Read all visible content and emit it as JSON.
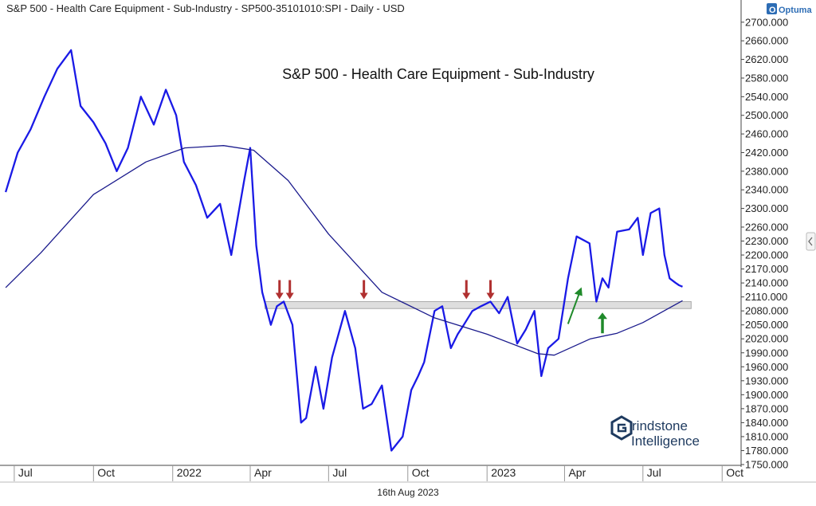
{
  "header": {
    "title": "S&P 500 - Health Care Equipment - Sub-Industry - SP500-35101010:SPI - Daily - USD"
  },
  "brand": {
    "optuma_label": "Optuma",
    "watermark_line1": "rindstone",
    "watermark_line2": "Intelligence"
  },
  "footer": {
    "date_label": "16th Aug 2023"
  },
  "colors": {
    "price": "#1a1ae6",
    "moving_average": "#1a1a8c",
    "resistance_arrow": "#b03030",
    "support_arrow": "#1f8a2a",
    "zone": "#d8d8d8"
  },
  "chart_data": {
    "type": "line",
    "title": "S&P 500 - Health Care Equipment - Sub-Industry",
    "xlabel": "",
    "ylabel": "",
    "ylim": [
      1750,
      2710
    ],
    "x_range": [
      "2021-06-20",
      "2023-10-23"
    ],
    "y_ticks": [
      "2700.000",
      "2660.000",
      "2620.000",
      "2580.000",
      "2540.000",
      "2500.000",
      "2460.000",
      "2420.000",
      "2380.000",
      "2340.000",
      "2300.000",
      "2260.000",
      "2230.000",
      "2200.000",
      "2170.000",
      "2140.000",
      "2110.000",
      "2080.000",
      "2050.000",
      "2020.000",
      "1990.000",
      "1960.000",
      "1930.000",
      "1900.000",
      "1870.000",
      "1840.000",
      "1810.000",
      "1780.000",
      "1750.000"
    ],
    "x_ticks": [
      {
        "label": "Jul",
        "date": "2021-07-01"
      },
      {
        "label": "Oct",
        "date": "2021-10-01"
      },
      {
        "label": "2022",
        "date": "2022-01-01"
      },
      {
        "label": "Apr",
        "date": "2022-04-01"
      },
      {
        "label": "Jul",
        "date": "2022-07-01"
      },
      {
        "label": "Oct",
        "date": "2022-10-01"
      },
      {
        "label": "2023",
        "date": "2023-01-01"
      },
      {
        "label": "Apr",
        "date": "2023-04-01"
      },
      {
        "label": "Jul",
        "date": "2023-07-01"
      },
      {
        "label": "Oct",
        "date": "2023-10-01"
      }
    ],
    "series": [
      {
        "key": "price",
        "x": [
          "2021-06-21",
          "2021-07-05",
          "2021-07-20",
          "2021-08-05",
          "2021-08-20",
          "2021-09-05",
          "2021-09-16",
          "2021-10-01",
          "2021-10-15",
          "2021-10-28",
          "2021-11-10",
          "2021-11-25",
          "2021-12-10",
          "2021-12-24",
          "2022-01-05",
          "2022-01-14",
          "2022-01-28",
          "2022-02-10",
          "2022-02-25",
          "2022-03-10",
          "2022-03-25",
          "2022-04-01",
          "2022-04-08",
          "2022-04-15",
          "2022-04-25",
          "2022-05-02",
          "2022-05-10",
          "2022-05-20",
          "2022-05-30",
          "2022-06-05",
          "2022-06-16",
          "2022-06-25",
          "2022-07-05",
          "2022-07-20",
          "2022-08-01",
          "2022-08-10",
          "2022-08-20",
          "2022-09-01",
          "2022-09-12",
          "2022-09-25",
          "2022-10-05",
          "2022-10-13",
          "2022-10-20",
          "2022-11-01",
          "2022-11-10",
          "2022-11-20",
          "2022-11-28",
          "2022-12-05",
          "2022-12-15",
          "2022-12-25",
          "2023-01-05",
          "2023-01-15",
          "2023-01-25",
          "2023-02-05",
          "2023-02-15",
          "2023-02-25",
          "2023-03-05",
          "2023-03-13",
          "2023-03-25",
          "2023-04-05",
          "2023-04-15",
          "2023-04-30",
          "2023-05-08",
          "2023-05-15",
          "2023-05-22",
          "2023-06-01",
          "2023-06-15",
          "2023-06-25",
          "2023-07-01",
          "2023-07-10",
          "2023-07-20",
          "2023-07-26",
          "2023-08-01",
          "2023-08-08",
          "2023-08-12",
          "2023-08-16"
        ],
        "values": [
          2335,
          2420,
          2470,
          2540,
          2600,
          2640,
          2520,
          2485,
          2440,
          2380,
          2430,
          2540,
          2480,
          2555,
          2500,
          2400,
          2350,
          2280,
          2310,
          2200,
          2360,
          2430,
          2220,
          2120,
          2050,
          2090,
          2100,
          2050,
          1840,
          1850,
          1960,
          1870,
          1980,
          2080,
          2000,
          1870,
          1880,
          1920,
          1780,
          1810,
          1910,
          1940,
          1970,
          2080,
          2090,
          2000,
          2030,
          2050,
          2080,
          2090,
          2100,
          2075,
          2110,
          2010,
          2040,
          2080,
          1940,
          2000,
          2020,
          2150,
          2240,
          2225,
          2100,
          2150,
          2130,
          2250,
          2255,
          2280,
          2200,
          2290,
          2300,
          2200,
          2150,
          2140,
          2135,
          2132
        ]
      },
      {
        "key": "moving_average",
        "x": [
          "2021-06-21",
          "2021-08-01",
          "2021-10-01",
          "2021-12-01",
          "2022-01-15",
          "2022-03-01",
          "2022-04-05",
          "2022-05-15",
          "2022-07-01",
          "2022-09-01",
          "2022-11-01",
          "2023-01-01",
          "2023-03-01",
          "2023-03-20",
          "2023-05-01",
          "2023-06-01",
          "2023-07-01",
          "2023-08-16"
        ],
        "values": [
          2130,
          2205,
          2330,
          2400,
          2430,
          2435,
          2425,
          2360,
          2245,
          2120,
          2065,
          2030,
          1988,
          1985,
          2020,
          2032,
          2055,
          2102
        ]
      }
    ],
    "annotations": [
      {
        "type": "zone",
        "x_start": "2022-04-18",
        "x_end": "2023-08-26",
        "y_low": 2085,
        "y_high": 2100
      },
      {
        "type": "arrow_down",
        "color": "resistance",
        "x": "2022-05-05"
      },
      {
        "type": "arrow_down",
        "color": "resistance",
        "x": "2022-05-17"
      },
      {
        "type": "arrow_down",
        "color": "resistance",
        "x": "2022-08-11"
      },
      {
        "type": "arrow_down",
        "color": "resistance",
        "x": "2022-12-08"
      },
      {
        "type": "arrow_down",
        "color": "resistance",
        "x": "2023-01-05"
      },
      {
        "type": "arrow_diag_up",
        "color": "support",
        "x": "2023-04-05"
      },
      {
        "type": "arrow_up",
        "color": "support",
        "x": "2023-05-15"
      }
    ]
  }
}
